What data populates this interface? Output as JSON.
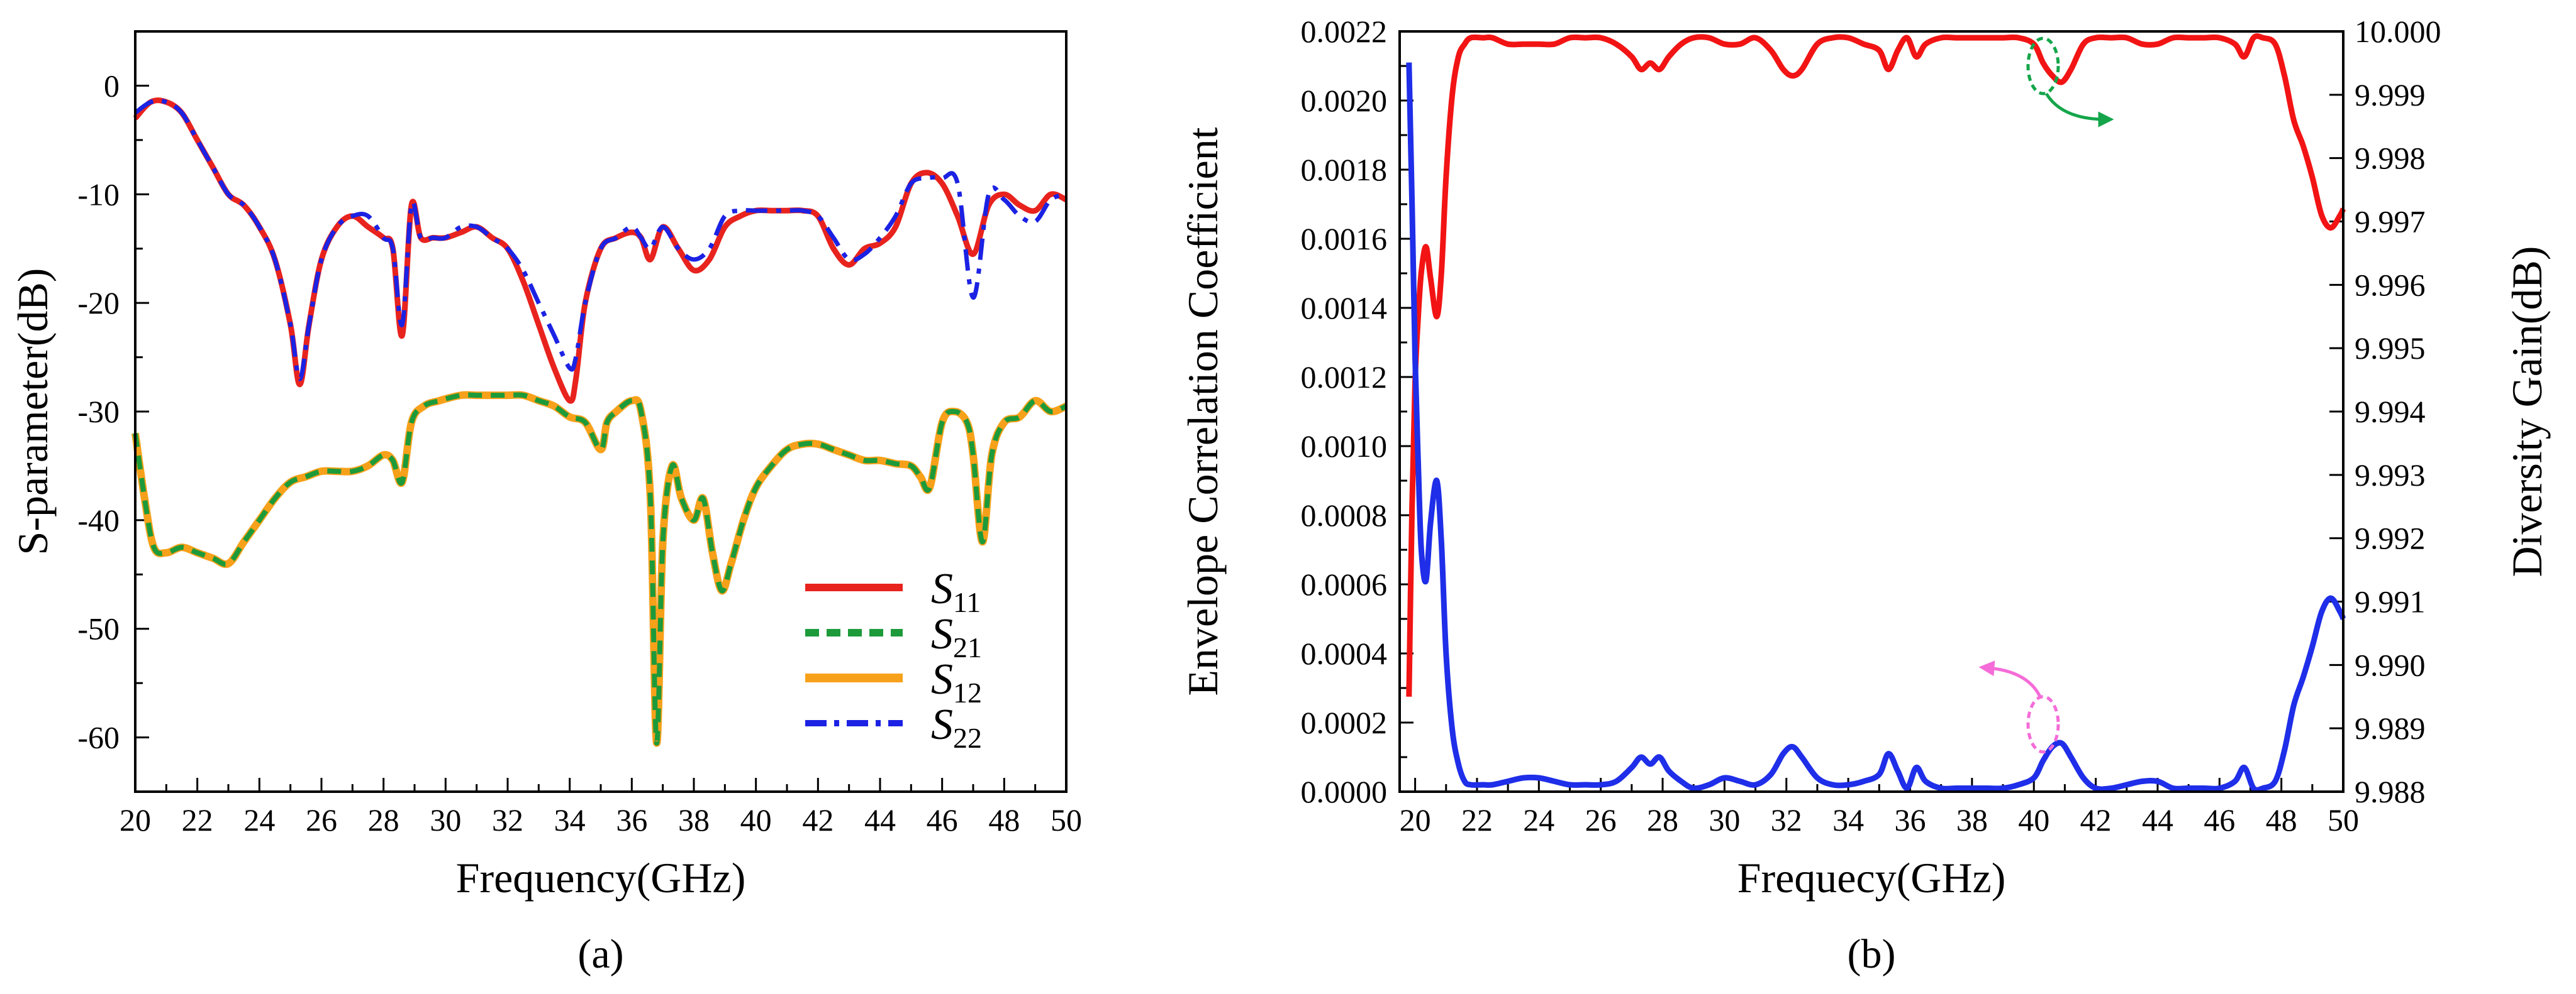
{
  "colors": {
    "s11": "#e8231e",
    "s21": "#1a8f32",
    "s21_dash": "#1d9a3a",
    "s12": "#f7a11a",
    "s22": "#1b22e3",
    "ecc": "#1f2ee8",
    "dg": "#f21414",
    "marker_green": "#14a54a",
    "marker_pink": "#f56cd8"
  },
  "chart_data": [
    {
      "id": "a",
      "type": "line",
      "panel_label": "(a)",
      "xlabel": "Frequency(GHz)",
      "ylabel": "S-parameter(dB)",
      "xlim": [
        20,
        50
      ],
      "ylim": [
        -65,
        5
      ],
      "xticks": [
        "20",
        "22",
        "24",
        "26",
        "28",
        "30",
        "32",
        "34",
        "36",
        "38",
        "40",
        "42",
        "44",
        "46",
        "48",
        "50"
      ],
      "yticks": [
        "0",
        "-10",
        "-20",
        "-30",
        "-40",
        "-50",
        "-60"
      ],
      "legend_position": "bottom-right",
      "legend": [
        {
          "key": "S11",
          "main": "S",
          "sub": "11"
        },
        {
          "key": "S21",
          "main": "S",
          "sub": "21"
        },
        {
          "key": "S12",
          "main": "S",
          "sub": "12"
        },
        {
          "key": "S22",
          "main": "S",
          "sub": "22"
        }
      ],
      "series": [
        {
          "name": "S11",
          "style": "solid",
          "x": [
            20,
            20.5,
            21,
            21.5,
            22,
            22.5,
            23,
            23.5,
            24,
            24.5,
            25,
            25.3,
            25.6,
            26,
            26.5,
            27,
            27.5,
            28,
            28.3,
            28.6,
            28.9,
            29.2,
            29.6,
            30,
            30.5,
            31,
            31.5,
            32,
            32.5,
            33,
            33.5,
            34,
            34.2,
            34.5,
            35,
            35.5,
            36,
            36.3,
            36.6,
            37,
            37.5,
            38,
            38.5,
            39,
            39.5,
            40,
            40.5,
            41,
            41.5,
            42,
            42.5,
            43,
            43.5,
            44,
            44.5,
            45,
            45.5,
            46,
            46.5,
            47,
            47.5,
            48,
            48.5,
            49,
            49.5,
            50
          ],
          "y": [
            -3,
            -1.5,
            -1.5,
            -2.5,
            -5,
            -7.5,
            -10,
            -11,
            -13,
            -16,
            -22,
            -27.5,
            -22,
            -16,
            -13,
            -12,
            -13,
            -14,
            -15,
            -23,
            -11,
            -14,
            -14,
            -14,
            -13.5,
            -13,
            -14,
            -15,
            -18,
            -22,
            -26,
            -29,
            -27,
            -20,
            -15,
            -14,
            -13.5,
            -14,
            -16,
            -13,
            -15,
            -17,
            -16,
            -13,
            -12,
            -11.5,
            -11.5,
            -11.5,
            -11.5,
            -12,
            -15,
            -16.5,
            -15,
            -14.5,
            -13,
            -9,
            -8,
            -9,
            -12,
            -15.5,
            -11,
            -10,
            -11,
            -11.5,
            -10,
            -10.5
          ]
        },
        {
          "name": "S22",
          "style": "dashdot",
          "x": [
            20,
            20.5,
            21,
            21.5,
            22,
            22.5,
            23,
            23.5,
            24,
            24.5,
            25,
            25.3,
            25.6,
            26,
            26.5,
            27,
            27.5,
            28,
            28.3,
            28.6,
            28.9,
            29.2,
            29.6,
            30,
            30.5,
            31,
            31.5,
            32,
            32.5,
            33,
            33.5,
            34,
            34.2,
            34.5,
            35,
            35.5,
            36,
            36.3,
            36.6,
            37,
            37.5,
            38,
            38.5,
            39,
            39.5,
            40,
            40.5,
            41,
            41.5,
            42,
            42.5,
            43,
            43.5,
            44,
            44.5,
            45,
            45.5,
            46,
            46.5,
            47,
            47.5,
            48,
            48.5,
            49,
            49.5,
            50
          ],
          "y": [
            -2.5,
            -1.5,
            -1.5,
            -2.5,
            -5,
            -7.5,
            -10,
            -11,
            -13,
            -16,
            -22,
            -27,
            -22,
            -16,
            -13,
            -12,
            -12,
            -14,
            -15,
            -22,
            -11,
            -14,
            -14,
            -14,
            -13,
            -13,
            -14,
            -15,
            -17,
            -20,
            -23,
            -26,
            -25,
            -20,
            -15,
            -14,
            -13,
            -14,
            -15,
            -13,
            -15,
            -16,
            -15,
            -12,
            -11.5,
            -11.5,
            -11.5,
            -11.5,
            -11.5,
            -12,
            -14,
            -16,
            -15.5,
            -14,
            -12,
            -9,
            -8.5,
            -8.5,
            -9,
            -19.5,
            -10,
            -10.5,
            -12,
            -12.5,
            -10.5,
            -10
          ]
        },
        {
          "name": "S12",
          "style": "solid",
          "x": [
            20,
            20.3,
            20.6,
            21,
            21.5,
            22,
            22.5,
            23,
            23.5,
            24,
            24.5,
            25,
            25.5,
            26,
            26.5,
            27,
            27.5,
            28,
            28.3,
            28.6,
            28.9,
            29.3,
            29.8,
            30.5,
            31,
            31.5,
            32,
            32.5,
            33,
            33.5,
            34,
            34.5,
            35,
            35.2,
            35.5,
            36,
            36.3,
            36.6,
            36.8,
            37,
            37.3,
            37.6,
            38,
            38.3,
            38.6,
            38.9,
            39.2,
            39.6,
            40,
            40.5,
            41,
            41.5,
            42,
            42.5,
            43,
            43.5,
            44,
            44.5,
            45,
            45.3,
            45.6,
            46,
            46.4,
            46.8,
            47,
            47.3,
            47.6,
            48,
            48.5,
            49,
            49.5,
            50
          ],
          "y": [
            -32,
            -38,
            -42.5,
            -43,
            -42.5,
            -43,
            -43.5,
            -44,
            -42,
            -40,
            -38,
            -36.5,
            -36,
            -35.5,
            -35.5,
            -35.5,
            -35,
            -34,
            -34.5,
            -36.5,
            -31,
            -29.5,
            -29,
            -28.5,
            -28.5,
            -28.5,
            -28.5,
            -28.5,
            -29,
            -29.5,
            -30.5,
            -31,
            -33.5,
            -31,
            -30,
            -29,
            -30,
            -38,
            -60.5,
            -42,
            -35,
            -38,
            -40,
            -38,
            -43,
            -46.5,
            -44,
            -40,
            -37,
            -35,
            -33.5,
            -33,
            -33,
            -33.5,
            -34,
            -34.5,
            -34.5,
            -34.8,
            -35,
            -36,
            -37,
            -31,
            -30,
            -31,
            -34,
            -42,
            -34,
            -31,
            -30.5,
            -29,
            -30,
            -29.5
          ]
        },
        {
          "name": "S21",
          "style": "dashed",
          "x": [
            20,
            20.3,
            20.6,
            21,
            21.5,
            22,
            22.5,
            23,
            23.5,
            24,
            24.5,
            25,
            25.5,
            26,
            26.5,
            27,
            27.5,
            28,
            28.3,
            28.6,
            28.9,
            29.3,
            29.8,
            30.5,
            31,
            31.5,
            32,
            32.5,
            33,
            33.5,
            34,
            34.5,
            35,
            35.2,
            35.5,
            36,
            36.3,
            36.6,
            36.8,
            37,
            37.3,
            37.6,
            38,
            38.3,
            38.6,
            38.9,
            39.2,
            39.6,
            40,
            40.5,
            41,
            41.5,
            42,
            42.5,
            43,
            43.5,
            44,
            44.5,
            45,
            45.3,
            45.6,
            46,
            46.4,
            46.8,
            47,
            47.3,
            47.6,
            48,
            48.5,
            49,
            49.5,
            50
          ],
          "y": [
            -32,
            -38,
            -42.5,
            -43,
            -42.5,
            -43,
            -43.5,
            -44,
            -42,
            -40,
            -38,
            -36.5,
            -36,
            -35.5,
            -35.5,
            -35.5,
            -35,
            -34,
            -34.5,
            -36.5,
            -31,
            -29.5,
            -29,
            -28.5,
            -28.5,
            -28.5,
            -28.5,
            -28.5,
            -29,
            -29.5,
            -30.5,
            -31,
            -33.5,
            -31,
            -30,
            -29,
            -30,
            -38,
            -60.5,
            -42,
            -35,
            -38,
            -40,
            -38,
            -43,
            -46.5,
            -44,
            -40,
            -37,
            -35,
            -33.5,
            -33,
            -33,
            -33.5,
            -34,
            -34.5,
            -34.5,
            -34.8,
            -35,
            -36,
            -37,
            -31,
            -30,
            -31,
            -34,
            -42,
            -34,
            -31,
            -30.5,
            -29,
            -30,
            -29.5
          ]
        }
      ]
    },
    {
      "id": "b",
      "type": "line",
      "panel_label": "(b)",
      "xlabel": "Frequecy(GHz)",
      "ylabel_left": "Envelope Correlation Coefficient",
      "ylabel_right": "Diversity Gain(dB)",
      "xlim": [
        19.5,
        50
      ],
      "ylim_left": [
        0,
        0.0022
      ],
      "ylim_right": [
        9.988,
        10.0
      ],
      "xticks": [
        "20",
        "22",
        "24",
        "26",
        "28",
        "30",
        "32",
        "34",
        "36",
        "38",
        "40",
        "42",
        "44",
        "46",
        "48",
        "50"
      ],
      "yticks_left": [
        "0.0000",
        "0.0002",
        "0.0004",
        "0.0006",
        "0.0008",
        "0.0010",
        "0.0012",
        "0.0014",
        "0.0016",
        "0.0018",
        "0.0020",
        "0.0022"
      ],
      "yticks_right": [
        "9.988",
        "9.989",
        "9.990",
        "9.991",
        "9.992",
        "9.993",
        "9.994",
        "9.995",
        "9.996",
        "9.997",
        "9.998",
        "9.999",
        "10.000"
      ],
      "annotations": [
        {
          "series": "Diversity Gain",
          "marker": "dashed-ellipse",
          "x": 40.3,
          "y_left": 0.0021,
          "arrow": "right",
          "color_key": "marker_green"
        },
        {
          "series": "ECC",
          "marker": "dashed-ellipse",
          "x": 40.3,
          "y_left": 0.000195,
          "arrow": "left",
          "color_key": "marker_pink"
        }
      ],
      "series": [
        {
          "name": "ECC",
          "axis": "left",
          "x": [
            19.8,
            19.9,
            20.0,
            20.1,
            20.2,
            20.35,
            20.5,
            20.7,
            20.85,
            21.0,
            21.2,
            21.4,
            21.6,
            21.8,
            22.2,
            22.5,
            23,
            23.5,
            24,
            24.5,
            25,
            25.5,
            26,
            26.5,
            27,
            27.3,
            27.6,
            27.9,
            28.2,
            28.6,
            29,
            29.5,
            30,
            30.5,
            31,
            31.5,
            31.9,
            32.2,
            32.5,
            33,
            33.5,
            34,
            34.5,
            35,
            35.3,
            35.6,
            35.9,
            36.2,
            36.5,
            37,
            37.5,
            38,
            38.5,
            39,
            39.5,
            40,
            40.3,
            40.6,
            40.9,
            41.2,
            41.6,
            42,
            42.5,
            43,
            43.5,
            44,
            44.5,
            45,
            45.5,
            46,
            46.5,
            46.8,
            47.1,
            47.4,
            47.8,
            48.1,
            48.4,
            48.7,
            49.0,
            49.3,
            49.6,
            49.9,
            50
          ],
          "y": [
            0.00211,
            0.0017,
            0.00125,
            0.00095,
            0.0007,
            0.00061,
            0.00078,
            0.0009,
            0.00072,
            0.0004,
            0.00018,
            8e-05,
            3e-05,
            2e-05,
            2e-05,
            2e-05,
            3e-05,
            4e-05,
            4e-05,
            3e-05,
            2e-05,
            2e-05,
            2e-05,
            3e-05,
            7e-05,
            0.0001,
            8e-05,
            0.0001,
            6e-05,
            3e-05,
            1e-05,
            2e-05,
            4e-05,
            3e-05,
            2e-05,
            5e-05,
            0.00011,
            0.00013,
            0.0001,
            4e-05,
            2e-05,
            2e-05,
            3e-05,
            5e-05,
            0.00011,
            6e-05,
            1e-05,
            7e-05,
            3e-05,
            1e-05,
            1e-05,
            1e-05,
            1e-05,
            1e-05,
            2e-05,
            4e-05,
            9e-05,
            0.00013,
            0.00014,
            0.0001,
            4e-05,
            1e-05,
            1e-05,
            2e-05,
            3e-05,
            3e-05,
            1e-05,
            1e-05,
            1e-05,
            1e-05,
            3e-05,
            7e-05,
            1e-05,
            1e-05,
            3e-05,
            0.00012,
            0.00025,
            0.00033,
            0.00042,
            0.00052,
            0.00056,
            0.00052,
            0.0005
          ]
        },
        {
          "name": "Diversity Gain",
          "axis": "right",
          "x": [
            19.8,
            19.9,
            20.0,
            20.1,
            20.2,
            20.35,
            20.5,
            20.7,
            20.85,
            21.0,
            21.2,
            21.4,
            21.6,
            21.8,
            22.2,
            22.5,
            23,
            23.5,
            24,
            24.5,
            25,
            25.5,
            26,
            26.5,
            27,
            27.3,
            27.6,
            27.9,
            28.2,
            28.6,
            29,
            29.5,
            30,
            30.5,
            31,
            31.5,
            31.9,
            32.2,
            32.5,
            33,
            33.5,
            34,
            34.5,
            35,
            35.3,
            35.6,
            35.9,
            36.2,
            36.5,
            37,
            37.5,
            38,
            38.5,
            39,
            39.5,
            40,
            40.3,
            40.6,
            40.9,
            41.2,
            41.6,
            42,
            42.5,
            43,
            43.5,
            44,
            44.5,
            45,
            45.5,
            46,
            46.5,
            46.8,
            47.1,
            47.4,
            47.8,
            48.1,
            48.4,
            48.7,
            49.0,
            49.3,
            49.6,
            49.9,
            50
          ],
          "y": [
            9.9895,
            9.9925,
            9.9945,
            9.9955,
            9.9962,
            9.9966,
            9.9961,
            9.9955,
            9.9962,
            9.9977,
            9.999,
            9.9996,
            9.9998,
            9.9999,
            9.9999,
            9.9999,
            9.9998,
            9.9998,
            9.9998,
            9.9998,
            9.9999,
            9.9999,
            9.9999,
            9.9998,
            9.9996,
            9.9994,
            9.9995,
            9.9994,
            9.9996,
            9.9998,
            9.9999,
            9.9999,
            9.9998,
            9.9998,
            9.9999,
            9.9997,
            9.9994,
            9.9993,
            9.9994,
            9.9998,
            9.9999,
            9.9999,
            9.9998,
            9.9997,
            9.9994,
            9.9997,
            9.9999,
            9.9996,
            9.9998,
            9.9999,
            9.9999,
            9.9999,
            9.9999,
            9.9999,
            9.9999,
            9.9998,
            9.9995,
            9.9993,
            9.9992,
            9.9994,
            9.9998,
            9.9999,
            9.9999,
            9.9999,
            9.9998,
            9.9998,
            9.9999,
            9.9999,
            9.9999,
            9.9999,
            9.9998,
            9.9996,
            9.9999,
            9.9999,
            9.9998,
            9.9993,
            9.9986,
            9.9982,
            9.9977,
            9.9971,
            9.9969,
            9.9971,
            9.9972
          ]
        }
      ]
    }
  ]
}
